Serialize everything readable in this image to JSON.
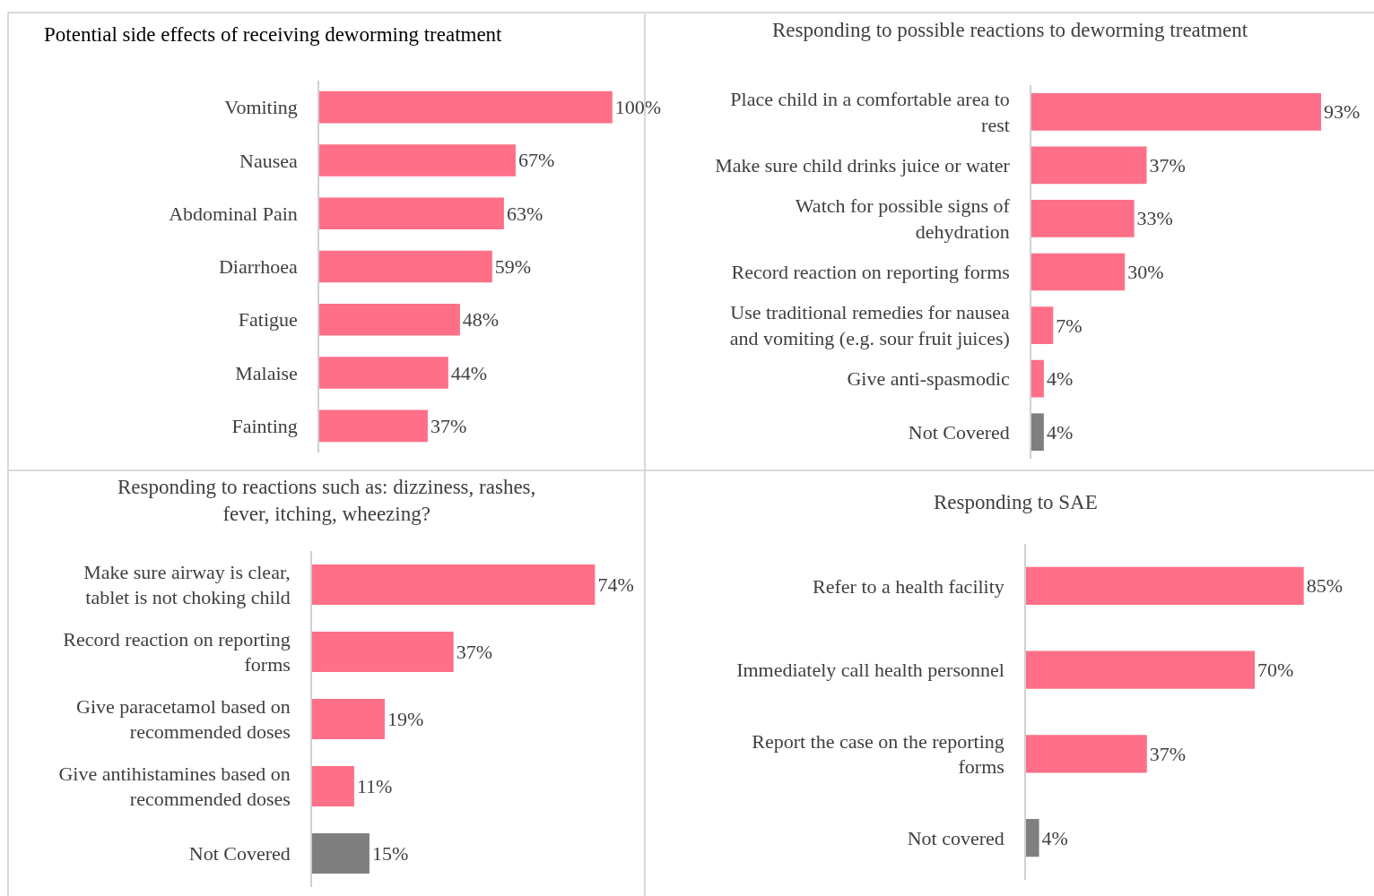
{
  "chart_data": [
    {
      "type": "bar",
      "orientation": "horizontal",
      "title": "Potential side effects of receiving deworming treatment",
      "categories": [
        "Vomiting",
        "Nausea",
        "Abdominal Pain",
        "Diarrhoea",
        "Fatigue",
        "Malaise",
        "Fainting"
      ],
      "values": [
        100,
        67,
        63,
        59,
        48,
        44,
        37
      ],
      "value_labels": [
        "100%",
        "67%",
        "63%",
        "59%",
        "48%",
        "44%",
        "37%"
      ],
      "colors": [
        "#ff6f87",
        "#ff6f87",
        "#ff6f87",
        "#ff6f87",
        "#ff6f87",
        "#ff6f87",
        "#ff6f87"
      ],
      "tick_labels": "y"
    },
    {
      "type": "bar",
      "orientation": "horizontal",
      "title": "Responding to possible reactions to deworming treatment",
      "categories": [
        "Place child in a comfortable area to rest",
        "Make sure child drinks juice or water",
        "Watch for possible signs of dehydration",
        "Record reaction on reporting forms",
        "Use traditional remedies for nausea and vomiting (e.g. sour fruit juices)",
        "Give anti-spasmodic",
        "Not Covered"
      ],
      "values": [
        93,
        37,
        33,
        30,
        7,
        4,
        4
      ],
      "value_labels": [
        "93%",
        "37%",
        "33%",
        "30%",
        "7%",
        "4%",
        "4%"
      ],
      "colors": [
        "#ff6f87",
        "#ff6f87",
        "#ff6f87",
        "#ff6f87",
        "#ff6f87",
        "#ff6f87",
        "#7f7f7f"
      ],
      "tick_labels": "y"
    },
    {
      "type": "bar",
      "orientation": "horizontal",
      "title": "Responding to reactions such as: dizziness, rashes, fever, itching, wheezing?",
      "categories": [
        "Make sure airway is clear, tablet is not choking child",
        "Record reaction on reporting forms",
        "Give paracetamol based on recommended doses",
        "Give antihistamines based on recommended doses",
        "Not Covered"
      ],
      "values": [
        74,
        37,
        19,
        11,
        15
      ],
      "value_labels": [
        "74%",
        "37%",
        "19%",
        "11%",
        "15%"
      ],
      "colors": [
        "#ff6f87",
        "#ff6f87",
        "#ff6f87",
        "#ff6f87",
        "#7f7f7f"
      ],
      "tick_labels": "y"
    },
    {
      "type": "bar",
      "orientation": "horizontal",
      "title": "Responding to SAE",
      "categories": [
        "Refer to a health facility",
        "Immediately call health personnel",
        "Report the case on the reporting forms",
        "Not covered"
      ],
      "values": [
        85,
        70,
        37,
        4
      ],
      "value_labels": [
        "85%",
        "70%",
        "37%",
        "4%"
      ],
      "colors": [
        "#ff6f87",
        "#ff6f87",
        "#ff6f87",
        "#7f7f7f"
      ],
      "tick_labels": "y"
    }
  ]
}
